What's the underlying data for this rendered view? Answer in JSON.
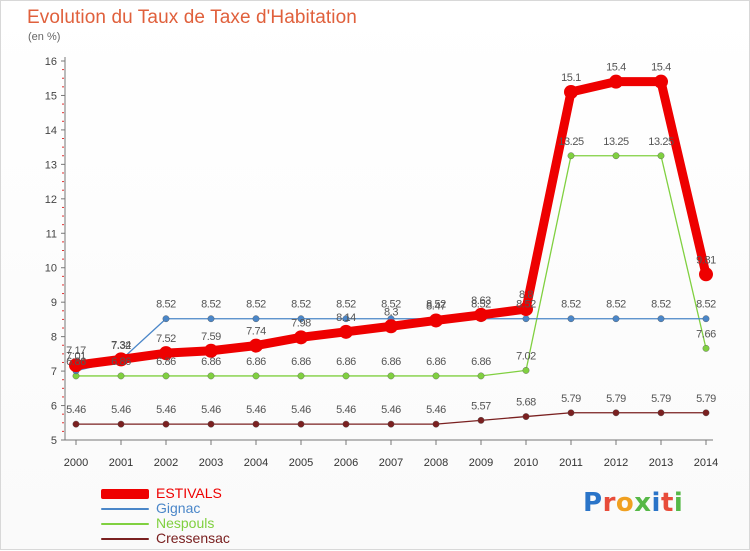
{
  "header": {
    "title": "Evolution du Taux de Taxe d'Habitation",
    "unit": "(en %)"
  },
  "logo": {
    "text": "Proxiti"
  },
  "chart_data": {
    "type": "line",
    "title": "Evolution du Taux de Taxe d'Habitation",
    "ylabel": "(en %)",
    "xlabel": "",
    "x": [
      2000,
      2001,
      2002,
      2003,
      2004,
      2005,
      2006,
      2007,
      2008,
      2009,
      2010,
      2011,
      2012,
      2013,
      2014
    ],
    "ylim": [
      5,
      16
    ],
    "yticks": [
      5,
      6,
      7,
      8,
      9,
      10,
      11,
      12,
      13,
      14,
      15,
      16
    ],
    "grid": false,
    "legend_position": "bottom-left",
    "series": [
      {
        "name": "ESTIVALS",
        "color": "#ee0000",
        "values": [
          7.17,
          7.34,
          7.52,
          7.59,
          7.74,
          7.98,
          8.14,
          8.3,
          8.47,
          8.63,
          8.8,
          15.1,
          15.4,
          15.4,
          9.81
        ]
      },
      {
        "name": "Gignac",
        "color": "#4a86c8",
        "values": [
          7.01,
          7.32,
          8.52,
          8.52,
          8.52,
          8.52,
          8.52,
          8.52,
          8.52,
          8.52,
          8.52,
          8.52,
          8.52,
          8.52,
          8.52
        ]
      },
      {
        "name": "Nespouls",
        "color": "#80d040",
        "values": [
          6.86,
          6.86,
          6.86,
          6.86,
          6.86,
          6.86,
          6.86,
          6.86,
          6.86,
          6.86,
          7.02,
          13.25,
          13.25,
          13.25,
          7.66
        ]
      },
      {
        "name": "Cressensac",
        "color": "#7a2020",
        "values": [
          5.46,
          5.46,
          5.46,
          5.46,
          5.46,
          5.46,
          5.46,
          5.46,
          5.46,
          5.57,
          5.68,
          5.79,
          5.79,
          5.79,
          5.79
        ]
      }
    ]
  }
}
